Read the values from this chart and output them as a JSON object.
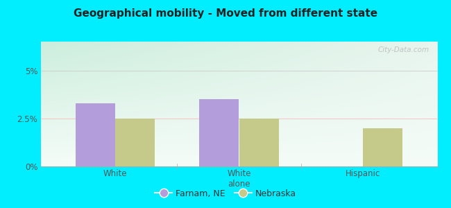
{
  "title": "Geographical mobility - Moved from different state",
  "categories": [
    "White",
    "White\nalone",
    "Hispanic"
  ],
  "farnam_values": [
    3.3,
    3.5,
    0.0
  ],
  "nebraska_values": [
    2.5,
    2.5,
    2.0
  ],
  "farnam_color": "#b39ddb",
  "nebraska_color": "#c5c98a",
  "bar_width": 0.32,
  "ylim": [
    0,
    6.5
  ],
  "yticks": [
    0,
    2.5,
    5.0
  ],
  "ytick_labels": [
    "0%",
    "2.5%",
    "5%"
  ],
  "legend_farnam": "Farnam, NE",
  "legend_nebraska": "Nebraska",
  "bg_top_left": "#cceedd",
  "bg_top_right": "#e8f5ee",
  "bg_bottom": "#f5fcf8",
  "outer_bg": "#00eeff",
  "title_fontsize": 11,
  "tick_fontsize": 8.5,
  "legend_fontsize": 9,
  "title_color": "#222222",
  "tick_color": "#555555"
}
